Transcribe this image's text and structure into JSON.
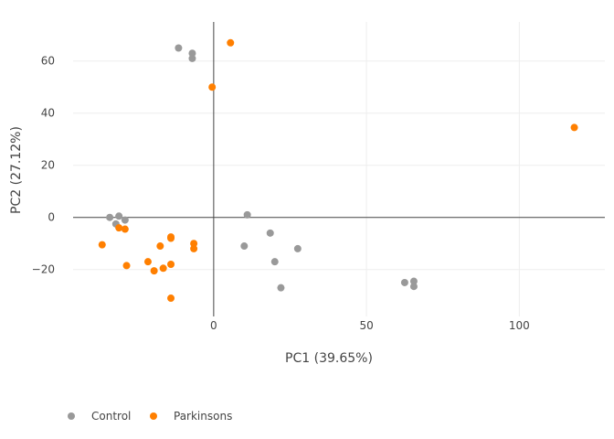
{
  "chart_data": {
    "type": "scatter",
    "xlabel": "PC1 (39.65%)",
    "ylabel": "PC2 (27.12%)",
    "xlim": [
      -46,
      128
    ],
    "ylim": [
      -38,
      75
    ],
    "x_ticks": [
      0,
      50,
      100
    ],
    "y_ticks": [
      -20,
      0,
      20,
      40,
      60
    ],
    "grid": true,
    "legend_position": "bottom-left",
    "series": [
      {
        "name": "Control",
        "color": "#999999",
        "points": [
          [
            -11.5,
            65
          ],
          [
            -7,
            63
          ],
          [
            -7,
            61
          ],
          [
            -34,
            0
          ],
          [
            -31,
            0.5
          ],
          [
            -29,
            -1
          ],
          [
            -32,
            -2.5
          ],
          [
            11,
            1
          ],
          [
            10,
            -11
          ],
          [
            18.5,
            -6
          ],
          [
            20,
            -17
          ],
          [
            27.5,
            -12
          ],
          [
            22,
            -27
          ],
          [
            62.5,
            -25
          ],
          [
            65.5,
            -24.5
          ],
          [
            65.5,
            -26.5
          ]
        ]
      },
      {
        "name": "Parkinsons",
        "color": "#ff7f00",
        "points": [
          [
            5.5,
            67
          ],
          [
            -0.5,
            50
          ],
          [
            118,
            34.5
          ],
          [
            -31,
            -4
          ],
          [
            -29,
            -4.5
          ],
          [
            -36.5,
            -10.5
          ],
          [
            -28.5,
            -18.5
          ],
          [
            -17.5,
            -11
          ],
          [
            -21.5,
            -17
          ],
          [
            -19.5,
            -20.5
          ],
          [
            -16.5,
            -19.5
          ],
          [
            -14,
            -7.5
          ],
          [
            -14,
            -8
          ],
          [
            -14,
            -18
          ],
          [
            -14,
            -31
          ],
          [
            -6.5,
            -10
          ],
          [
            -6.5,
            -12
          ]
        ]
      }
    ]
  }
}
